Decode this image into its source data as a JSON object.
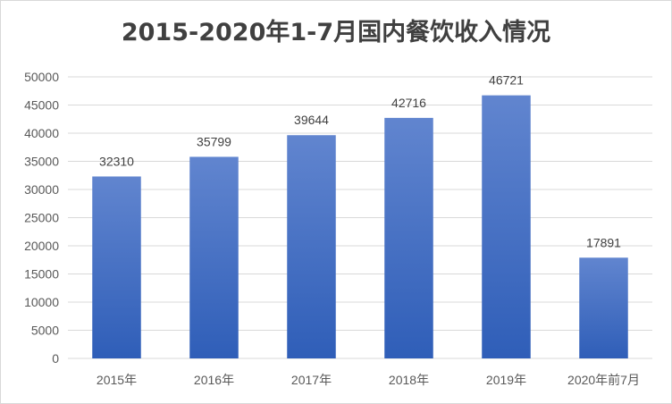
{
  "chart_data": {
    "type": "bar",
    "title": "2015-2020年1-7月国内餐饮收入情况",
    "categories": [
      "2015年",
      "2016年",
      "2017年",
      "2018年",
      "2019年",
      "2020年前7月"
    ],
    "values": [
      32310,
      35799,
      39644,
      42716,
      46721,
      17891
    ],
    "ylim": [
      0,
      50000
    ],
    "yticks": [
      0,
      5000,
      10000,
      15000,
      20000,
      25000,
      30000,
      35000,
      40000,
      45000,
      50000
    ],
    "grid": true,
    "legend": "none",
    "xlabel": "",
    "ylabel": "",
    "colors": {
      "bar_top": "#6185cf",
      "bar_bottom": "#2f5eb8",
      "grid": "#d9d9d9"
    }
  }
}
